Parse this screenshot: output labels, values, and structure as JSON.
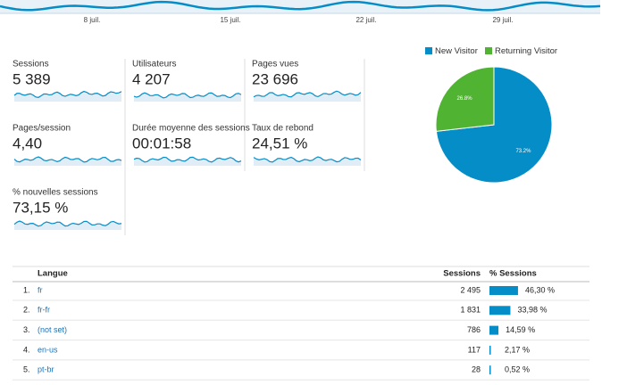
{
  "timeline": {
    "x_labels": [
      "8 juil.",
      "15 juil.",
      "22 juil.",
      "29 juil."
    ]
  },
  "metrics": [
    {
      "label": "Sessions",
      "value": "5 389"
    },
    {
      "label": "Utilisateurs",
      "value": "4 207"
    },
    {
      "label": "Pages vues",
      "value": "23 696"
    },
    {
      "label": "Pages/session",
      "value": "4,40"
    },
    {
      "label": "Durée moyenne des sessions",
      "value": "00:01:58"
    },
    {
      "label": "Taux de rebond",
      "value": "24,51 %"
    },
    {
      "label": "% nouvelles sessions",
      "value": "73,15 %"
    }
  ],
  "chart_data": {
    "type": "pie",
    "categories": [
      "New Visitor",
      "Returning Visitor"
    ],
    "values": [
      73.2,
      26.8
    ],
    "value_labels": [
      "73.2%",
      "26.8%"
    ],
    "colors": [
      "#058dc7",
      "#50b432"
    ]
  },
  "table": {
    "headers": [
      "Langue",
      "Sessions",
      "% Sessions"
    ],
    "rows": [
      {
        "rank": "1.",
        "language": "fr",
        "sessions": "2 495",
        "share": {
          "value": 46.3,
          "label": "46,30 %"
        }
      },
      {
        "rank": "2.",
        "language": "fr-fr",
        "sessions": "1 831",
        "share": {
          "value": 33.98,
          "label": "33,98 %"
        }
      },
      {
        "rank": "3.",
        "language": "(not set)",
        "sessions": "786",
        "share": {
          "value": 14.59,
          "label": "14,59 %"
        }
      },
      {
        "rank": "4.",
        "language": "en-us",
        "sessions": "117",
        "share": {
          "value": 2.17,
          "label": "2,17 %"
        }
      },
      {
        "rank": "5.",
        "language": "pt-br",
        "sessions": "28",
        "share": {
          "value": 0.52,
          "label": "0,52 %"
        }
      }
    ]
  }
}
